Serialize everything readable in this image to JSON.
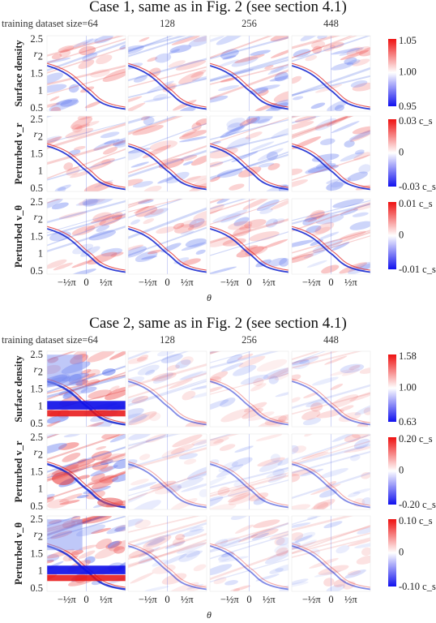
{
  "chart_data": [
    {
      "type": "heatmap",
      "title": "Case 1, same as in Fig. 2 (see section 4.1)",
      "column_titles": [
        "training dataset size=64",
        "128",
        "256",
        "448"
      ],
      "rows": [
        {
          "label": "Surface density",
          "colorbar": {
            "max": "1.05",
            "mid": "1.00",
            "min": "0.95"
          }
        },
        {
          "label": "Perturbed v_r",
          "colorbar": {
            "max": "0.03 c_s",
            "mid": "0",
            "min": "-0.03 c_s"
          }
        },
        {
          "label": "Perturbed v_θ",
          "colorbar": {
            "max": "0.01 c_s",
            "mid": "0",
            "min": "-0.01 c_s"
          }
        }
      ],
      "ylabel": "r",
      "xlabel": "θ",
      "yticks": [
        "0.5",
        "1",
        "1.5",
        "2",
        "2.5"
      ],
      "xticks": [
        "−½π",
        "0",
        "½π"
      ],
      "ylim": [
        0.4,
        2.6
      ],
      "colormap": "bwr"
    },
    {
      "type": "heatmap",
      "title": "Case 2, same as in Fig. 2 (see section 4.1)",
      "column_titles": [
        "training dataset size=64",
        "128",
        "256",
        "448"
      ],
      "rows": [
        {
          "label": "Surface density",
          "colorbar": {
            "max": "1.58",
            "mid": "1.00",
            "min": "0.63"
          }
        },
        {
          "label": "Perturbed v_r",
          "colorbar": {
            "max": "0.20 c_s",
            "mid": "0",
            "min": "-0.20 c_s"
          }
        },
        {
          "label": "Perturbed v_θ",
          "colorbar": {
            "max": "0.10 c_s",
            "mid": "0",
            "min": "-0.10 c_s"
          }
        }
      ],
      "ylabel": "r",
      "xlabel": "θ",
      "yticks": [
        "0.5",
        "1",
        "1.5",
        "2",
        "2.5"
      ],
      "xticks": [
        "−½π",
        "0",
        "½π"
      ],
      "ylim": [
        0.4,
        2.6
      ],
      "colormap": "bwr"
    }
  ],
  "colors": {
    "positive": "#ee1111",
    "neutral": "#ffffff",
    "negative": "#1111ee"
  }
}
